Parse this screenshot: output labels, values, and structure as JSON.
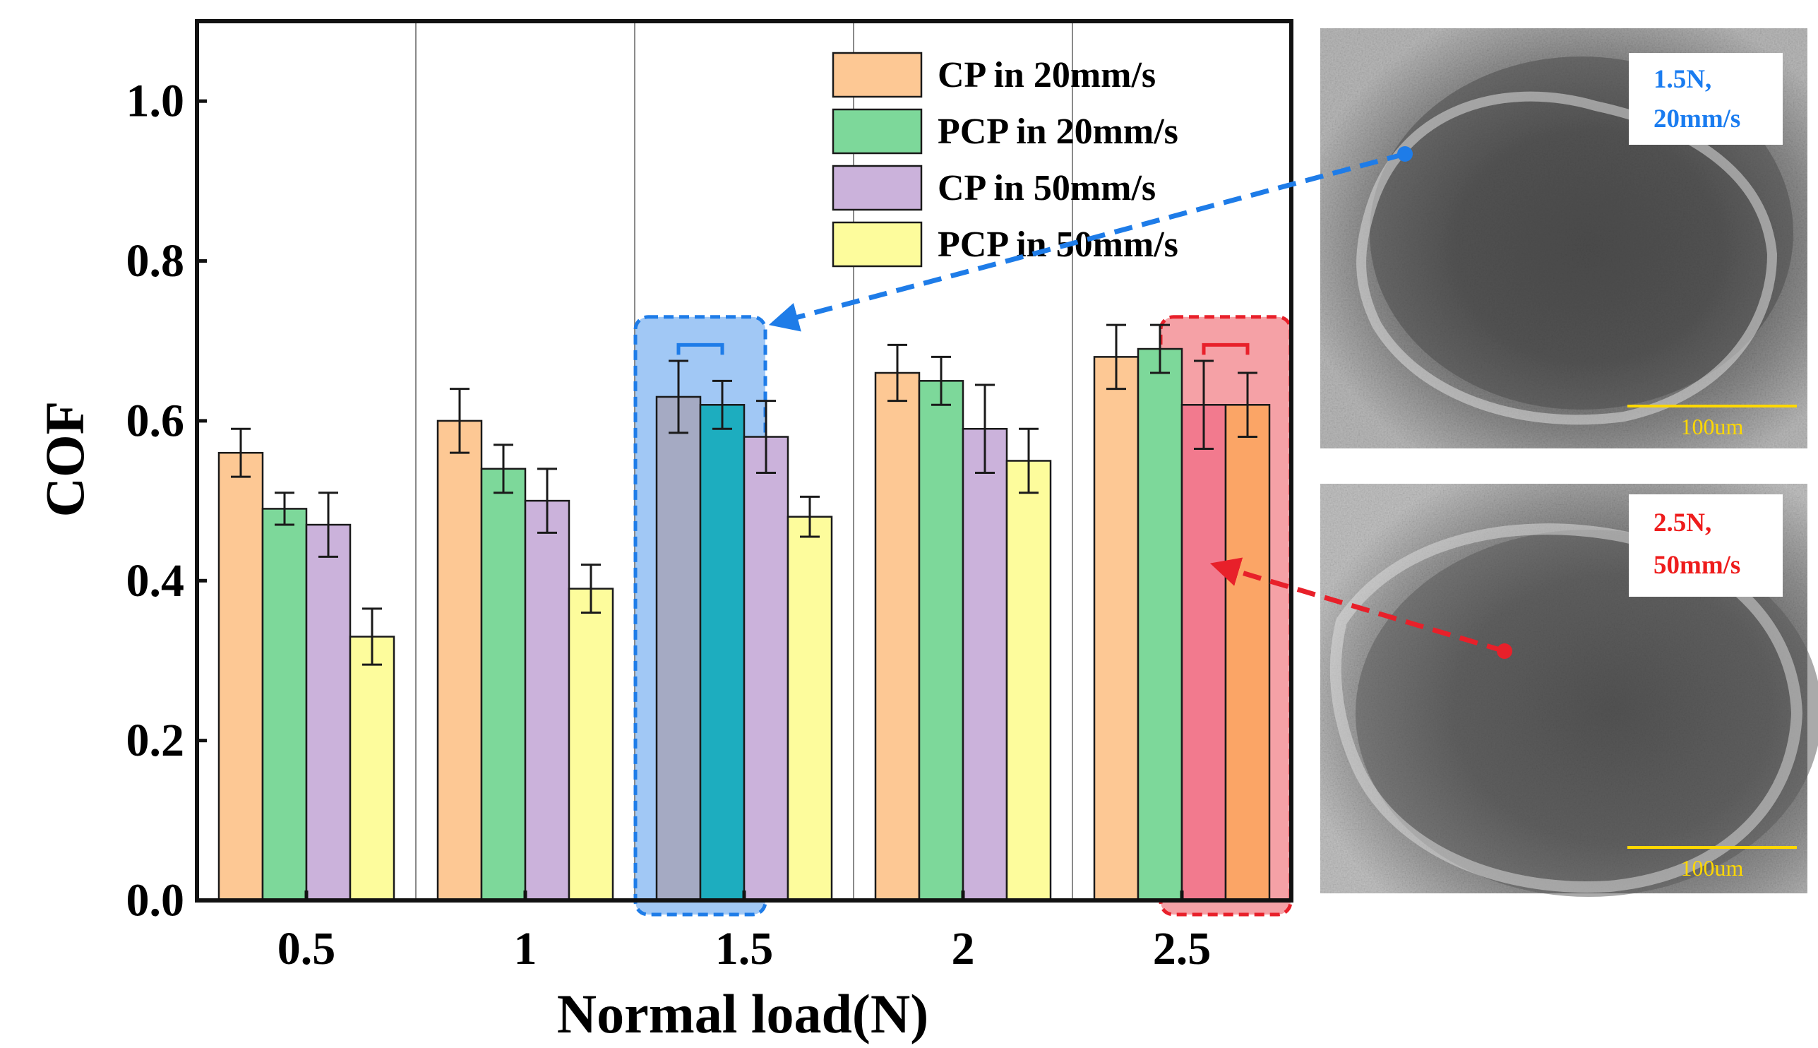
{
  "chart_data": {
    "type": "bar",
    "title": "",
    "xlabel": "Normal load(N)",
    "ylabel": "COF",
    "ylim": [
      0,
      1.1
    ],
    "yticks": [
      "0.0",
      "0.2",
      "0.4",
      "0.6",
      "0.8",
      "1.0"
    ],
    "categories": [
      "0.5",
      "1",
      "1.5",
      "2",
      "2.5"
    ],
    "series": [
      {
        "name": "CP in 20mm/s",
        "color": "#fdc894",
        "values": [
          0.56,
          0.6,
          0.63,
          0.66,
          0.68
        ],
        "errors": [
          0.03,
          0.04,
          0.045,
          0.035,
          0.04
        ]
      },
      {
        "name": "PCP in 20mm/s",
        "color": "#7dd89a",
        "values": [
          0.49,
          0.54,
          0.62,
          0.65,
          0.69
        ],
        "errors": [
          0.02,
          0.03,
          0.03,
          0.03,
          0.03
        ]
      },
      {
        "name": "CP in 50mm/s",
        "color": "#cbb2db",
        "values": [
          0.47,
          0.5,
          0.58,
          0.59,
          0.62
        ],
        "errors": [
          0.04,
          0.04,
          0.045,
          0.055,
          0.055
        ]
      },
      {
        "name": "PCP in 50mm/s",
        "color": "#fdfc9c",
        "values": [
          0.33,
          0.39,
          0.48,
          0.55,
          0.62
        ],
        "errors": [
          0.035,
          0.03,
          0.025,
          0.04,
          0.04
        ]
      }
    ],
    "legend_position": "top-right",
    "highlights": [
      {
        "category": "1.5",
        "series": [
          0,
          1
        ],
        "color": "#1e7ce8",
        "overlay_colors": [
          "#a5aac3",
          "#1dadbf"
        ]
      },
      {
        "category": "2.5",
        "series": [
          2,
          3
        ],
        "color": "#e8202a",
        "overlay_colors": [
          "#f27a8e",
          "#fba566"
        ]
      }
    ]
  },
  "micrographs": [
    {
      "label_line1": "1.5N,",
      "label_line2": "20mm/s",
      "label_color": "#1a7cf0",
      "scale_bar": "100um"
    },
    {
      "label_line1": "2.5N,",
      "label_line2": "50mm/s",
      "label_color": "#ee1c1c",
      "scale_bar": "100um"
    }
  ]
}
